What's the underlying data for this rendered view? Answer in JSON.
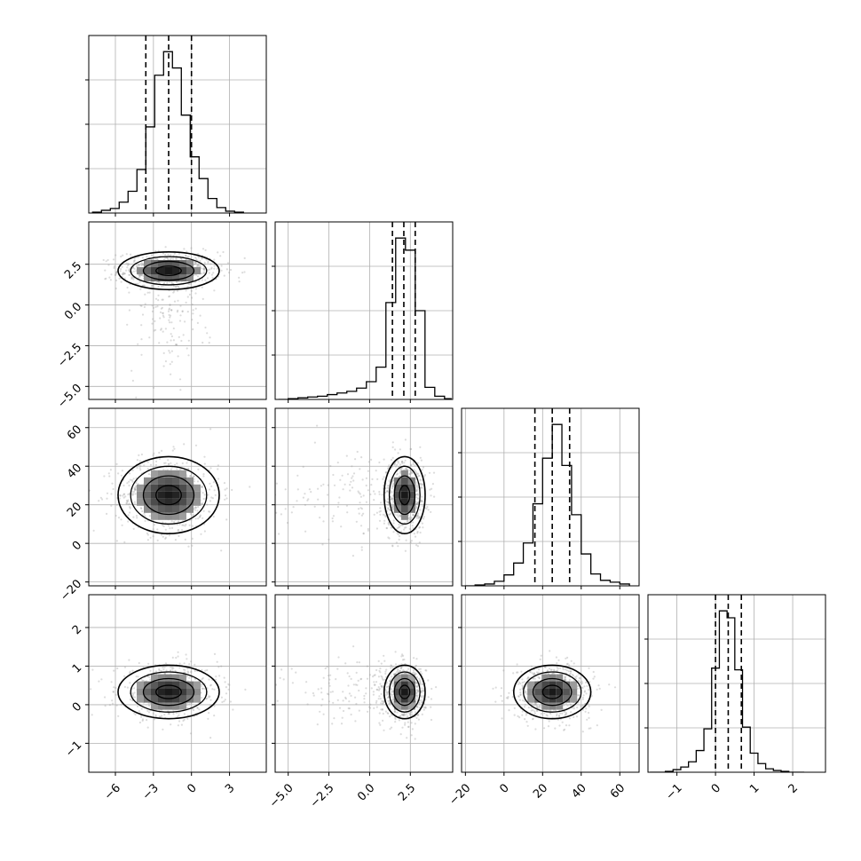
{
  "chart_data": {
    "type": "corner",
    "n_params": 4,
    "colors": {
      "line": "#000000",
      "grid": "#b0b0b0",
      "scatter": "#9a9a9a"
    },
    "axis_ranges": [
      [
        -8.1,
        5.9
      ],
      [
        -5.8,
        5.1
      ],
      [
        -22,
        70
      ],
      [
        -1.75,
        2.85
      ]
    ],
    "ticks": [
      {
        "values": [
          -6,
          -3,
          0,
          3
        ],
        "labels": [
          "−6",
          "−3",
          "0",
          "3"
        ]
      },
      {
        "values": [
          -5,
          -2.5,
          0,
          2.5
        ],
        "labels": [
          "−5.0",
          "−2.5",
          "0.0",
          "2.5"
        ]
      },
      {
        "values": [
          -20,
          0,
          20,
          40,
          60
        ],
        "labels": [
          "−20",
          "0",
          "20",
          "40",
          "60"
        ]
      },
      {
        "values": [
          -1,
          0,
          1,
          2
        ],
        "labels": [
          "−1",
          "0",
          "1",
          "2"
        ]
      }
    ],
    "quantiles": [
      [
        -3.6,
        -1.8,
        0.0
      ],
      [
        1.4,
        2.1,
        2.8
      ],
      [
        16,
        25,
        34
      ],
      [
        0.0,
        0.33,
        0.67
      ]
    ],
    "histograms": [
      {
        "bins": [
          -7.8,
          -7.1,
          -6.4,
          -5.7,
          -5.0,
          -4.3,
          -3.6,
          -2.9,
          -2.2,
          -1.5,
          -0.8,
          -0.1,
          0.6,
          1.3,
          2.0,
          2.7,
          3.4,
          4.1
        ],
        "counts": [
          1,
          3,
          5,
          12,
          24,
          48,
          95,
          152,
          178,
          160,
          108,
          62,
          38,
          16,
          6,
          2,
          1
        ]
      },
      {
        "bins": [
          -5.6,
          -5.0,
          -4.4,
          -3.8,
          -3.2,
          -2.6,
          -2.0,
          -1.4,
          -0.8,
          -0.2,
          0.4,
          1.0,
          1.6,
          2.2,
          2.8,
          3.4,
          4.0,
          4.6,
          5.0
        ],
        "counts": [
          0,
          1,
          2,
          3,
          4,
          6,
          8,
          10,
          14,
          22,
          40,
          120,
          200,
          185,
          110,
          15,
          4,
          1
        ]
      },
      {
        "bins": [
          -20,
          -15,
          -10,
          -5,
          0,
          5,
          10,
          15,
          20,
          25,
          30,
          35,
          40,
          45,
          50,
          55,
          60,
          65
        ],
        "counts": [
          0,
          1,
          2,
          5,
          12,
          25,
          47,
          90,
          140,
          177,
          132,
          78,
          35,
          13,
          6,
          4,
          2
        ]
      },
      {
        "bins": [
          -1.7,
          -1.5,
          -1.3,
          -1.1,
          -0.9,
          -0.7,
          -0.5,
          -0.3,
          -0.1,
          0.1,
          0.3,
          0.5,
          0.7,
          0.9,
          1.1,
          1.3,
          1.5,
          1.7,
          1.9,
          2.1,
          2.3
        ],
        "counts": [
          0,
          0,
          1,
          3,
          6,
          12,
          25,
          50,
          120,
          186,
          178,
          118,
          52,
          22,
          10,
          4,
          2,
          1,
          0,
          0
        ]
      }
    ],
    "pairs": [
      {
        "row": 1,
        "col": 0,
        "mx": -1.8,
        "my": 2.1,
        "sx": 1.9,
        "sy": 0.55
      },
      {
        "row": 2,
        "col": 0,
        "mx": -1.8,
        "my": 25,
        "sx": 1.9,
        "sy": 9.5
      },
      {
        "row": 2,
        "col": 1,
        "mx": 2.15,
        "my": 25,
        "sx": 0.6,
        "sy": 9.5
      },
      {
        "row": 3,
        "col": 0,
        "mx": -1.8,
        "my": 0.33,
        "sx": 1.9,
        "sy": 0.33
      },
      {
        "row": 3,
        "col": 1,
        "mx": 2.15,
        "my": 0.33,
        "sx": 0.6,
        "sy": 0.33
      },
      {
        "row": 3,
        "col": 2,
        "mx": 25,
        "my": 0.33,
        "sx": 9.5,
        "sy": 0.33
      }
    ],
    "contour_sigmas": [
      0.5,
      1.0,
      1.5,
      2.0
    ]
  }
}
